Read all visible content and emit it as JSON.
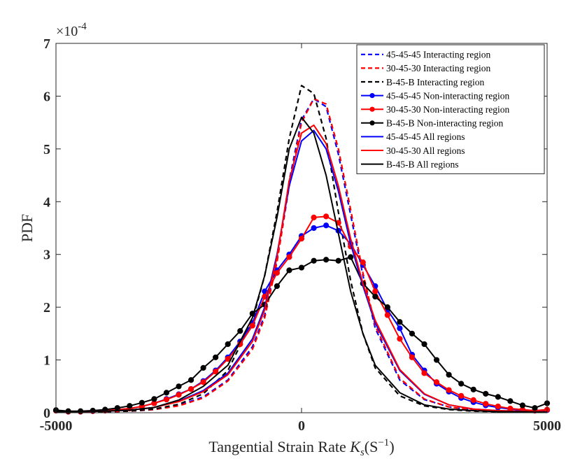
{
  "chart_data": {
    "type": "line",
    "xlabel": "Tangential Strain Rate",
    "xlabel_math": "K",
    "xlabel_math_sub": "s",
    "xlabel_math_paren": "(S",
    "xlabel_math_sup": "−1",
    "xlabel_math_close": ")",
    "ylabel": "PDF",
    "y_exponent_base": "×10",
    "y_exponent_power": "-4",
    "xlim": [
      -5000,
      5000
    ],
    "ylim": [
      0,
      7
    ],
    "xticks": [
      -5000,
      0,
      5000
    ],
    "xtick_labels": [
      "-5000",
      "0",
      "5000"
    ],
    "yticks": [
      0,
      1,
      2,
      3,
      4,
      5,
      6,
      7
    ],
    "ytick_labels": [
      "0",
      "1",
      "2",
      "3",
      "4",
      "5",
      "6",
      "7"
    ],
    "grid": false,
    "legend_position": "top-right",
    "colors": {
      "blue": "#0000ff",
      "red": "#ff0000",
      "black": "#000000"
    },
    "series": [
      {
        "name": "45-45-45 Interacting region",
        "color": "#0000ff",
        "style": "dashed",
        "marker": "none",
        "x": [
          -5000,
          -4500,
          -4000,
          -3500,
          -3000,
          -2500,
          -2000,
          -1500,
          -1000,
          -750,
          -500,
          -250,
          0,
          250,
          500,
          750,
          1000,
          1250,
          1500,
          2000,
          2500,
          3000,
          3500,
          4000,
          4500,
          5000
        ],
        "y": [
          0.01,
          0.01,
          0.02,
          0.03,
          0.06,
          0.14,
          0.3,
          0.62,
          1.25,
          1.85,
          2.9,
          4.4,
          5.55,
          5.95,
          5.8,
          4.9,
          3.75,
          2.6,
          1.6,
          0.62,
          0.25,
          0.11,
          0.05,
          0.03,
          0.02,
          0.01
        ]
      },
      {
        "name": "30-45-30 Interacting region",
        "color": "#ff0000",
        "style": "dashed",
        "marker": "none",
        "x": [
          -5000,
          -4500,
          -4000,
          -3500,
          -3000,
          -2500,
          -2000,
          -1500,
          -1000,
          -750,
          -500,
          -250,
          0,
          250,
          500,
          750,
          1000,
          1250,
          1500,
          2000,
          2500,
          3000,
          3500,
          4000,
          4500,
          5000
        ],
        "y": [
          0.01,
          0.01,
          0.02,
          0.03,
          0.06,
          0.13,
          0.28,
          0.6,
          1.2,
          1.8,
          2.85,
          4.3,
          5.5,
          5.95,
          5.85,
          5.0,
          3.85,
          2.65,
          1.65,
          0.65,
          0.26,
          0.11,
          0.05,
          0.03,
          0.02,
          0.01
        ]
      },
      {
        "name": "B-45-B Interacting region",
        "color": "#000000",
        "style": "dashed",
        "marker": "none",
        "x": [
          -5000,
          -4500,
          -4000,
          -3500,
          -3000,
          -2500,
          -2000,
          -1500,
          -1000,
          -750,
          -500,
          -250,
          0,
          250,
          500,
          750,
          1000,
          1250,
          1500,
          2000,
          2500,
          3000,
          3500,
          4000,
          4500,
          5000
        ],
        "y": [
          0.01,
          0.01,
          0.02,
          0.03,
          0.07,
          0.16,
          0.36,
          0.8,
          1.75,
          2.6,
          3.8,
          5.2,
          6.2,
          6.05,
          5.2,
          3.8,
          2.5,
          1.5,
          0.85,
          0.32,
          0.13,
          0.06,
          0.03,
          0.02,
          0.01,
          0.01
        ]
      },
      {
        "name": "45-45-45 Non-interacting region",
        "color": "#0000ff",
        "style": "solid",
        "marker": "circle",
        "x": [
          -5000,
          -4750,
          -4500,
          -4250,
          -4000,
          -3750,
          -3500,
          -3250,
          -3000,
          -2750,
          -2500,
          -2250,
          -2000,
          -1750,
          -1500,
          -1250,
          -1000,
          -750,
          -500,
          -250,
          0,
          250,
          500,
          750,
          1000,
          1250,
          1500,
          1750,
          2000,
          2250,
          2500,
          2750,
          3000,
          3250,
          3500,
          3750,
          4000,
          4250,
          4500,
          4750,
          5000
        ],
        "y": [
          0.04,
          0.02,
          0.02,
          0.03,
          0.04,
          0.06,
          0.08,
          0.12,
          0.18,
          0.26,
          0.35,
          0.45,
          0.6,
          0.8,
          1.05,
          1.35,
          1.7,
          2.3,
          2.7,
          3.0,
          3.35,
          3.5,
          3.55,
          3.45,
          3.2,
          2.8,
          2.4,
          1.95,
          1.6,
          1.1,
          0.8,
          0.55,
          0.4,
          0.28,
          0.2,
          0.14,
          0.1,
          0.07,
          0.05,
          0.04,
          0.05
        ]
      },
      {
        "name": "30-45-30 Non-interacting region",
        "color": "#ff0000",
        "style": "solid",
        "marker": "circle",
        "x": [
          -5000,
          -4750,
          -4500,
          -4250,
          -4000,
          -3750,
          -3500,
          -3250,
          -3000,
          -2750,
          -2500,
          -2250,
          -2000,
          -1750,
          -1500,
          -1250,
          -1000,
          -750,
          -500,
          -250,
          0,
          250,
          500,
          750,
          1000,
          1250,
          1500,
          1750,
          2000,
          2250,
          2500,
          2750,
          3000,
          3250,
          3500,
          3750,
          4000,
          4250,
          4500,
          4750,
          5000
        ],
        "y": [
          0.04,
          0.02,
          0.02,
          0.03,
          0.04,
          0.06,
          0.08,
          0.12,
          0.18,
          0.25,
          0.34,
          0.45,
          0.58,
          0.78,
          1.02,
          1.3,
          1.65,
          2.2,
          2.65,
          2.95,
          3.3,
          3.7,
          3.72,
          3.6,
          3.15,
          2.85,
          2.3,
          1.85,
          1.4,
          1.05,
          0.75,
          0.58,
          0.43,
          0.32,
          0.24,
          0.17,
          0.12,
          0.08,
          0.06,
          0.04,
          0.06
        ]
      },
      {
        "name": "B-45-B Non-interacting region",
        "color": "#000000",
        "style": "solid",
        "marker": "circle",
        "x": [
          -5000,
          -4750,
          -4500,
          -4250,
          -4000,
          -3750,
          -3500,
          -3250,
          -3000,
          -2750,
          -2500,
          -2250,
          -2000,
          -1750,
          -1500,
          -1250,
          -1000,
          -750,
          -500,
          -250,
          0,
          250,
          500,
          750,
          1000,
          1250,
          1500,
          1750,
          2000,
          2250,
          2500,
          2750,
          3000,
          3250,
          3500,
          3750,
          4000,
          4250,
          4500,
          4750,
          5000
        ],
        "y": [
          0.05,
          0.03,
          0.03,
          0.04,
          0.06,
          0.09,
          0.13,
          0.19,
          0.26,
          0.38,
          0.5,
          0.62,
          0.85,
          1.05,
          1.3,
          1.55,
          1.88,
          2.05,
          2.4,
          2.7,
          2.75,
          2.88,
          2.9,
          2.88,
          2.95,
          2.45,
          2.2,
          2.0,
          1.72,
          1.5,
          1.3,
          1.0,
          0.72,
          0.55,
          0.44,
          0.36,
          0.3,
          0.22,
          0.14,
          0.09,
          0.18
        ]
      },
      {
        "name": "45-45-45 All regions",
        "color": "#0000ff",
        "style": "solid",
        "marker": "none",
        "x": [
          -5000,
          -4500,
          -4000,
          -3500,
          -3000,
          -2500,
          -2000,
          -1500,
          -1000,
          -750,
          -500,
          -250,
          0,
          250,
          500,
          750,
          1000,
          1250,
          1500,
          2000,
          2500,
          3000,
          3500,
          4000,
          4500,
          5000
        ],
        "y": [
          0.02,
          0.02,
          0.03,
          0.05,
          0.1,
          0.22,
          0.42,
          0.75,
          1.4,
          2.0,
          3.0,
          4.3,
          5.15,
          5.35,
          5.0,
          4.2,
          3.2,
          2.4,
          1.7,
          0.8,
          0.35,
          0.15,
          0.07,
          0.04,
          0.03,
          0.02
        ]
      },
      {
        "name": "30-45-30 All regions",
        "color": "#ff0000",
        "style": "solid",
        "marker": "none",
        "x": [
          -5000,
          -4500,
          -4000,
          -3500,
          -3000,
          -2500,
          -2000,
          -1500,
          -1000,
          -750,
          -500,
          -250,
          0,
          250,
          500,
          750,
          1000,
          1250,
          1500,
          2000,
          2500,
          3000,
          3500,
          4000,
          4500,
          5000
        ],
        "y": [
          0.02,
          0.02,
          0.03,
          0.05,
          0.1,
          0.21,
          0.4,
          0.72,
          1.35,
          1.95,
          2.95,
          4.4,
          5.3,
          5.45,
          5.1,
          4.3,
          3.3,
          2.45,
          1.75,
          0.82,
          0.36,
          0.15,
          0.07,
          0.04,
          0.03,
          0.02
        ]
      },
      {
        "name": "B-45-B All regions",
        "color": "#000000",
        "style": "solid",
        "marker": "none",
        "x": [
          -5000,
          -4500,
          -4000,
          -3500,
          -3000,
          -2500,
          -2000,
          -1500,
          -1000,
          -750,
          -500,
          -250,
          0,
          250,
          500,
          750,
          1000,
          1250,
          1500,
          2000,
          2500,
          3000,
          3500,
          4000,
          4500,
          5000
        ],
        "y": [
          0.02,
          0.02,
          0.03,
          0.05,
          0.1,
          0.24,
          0.5,
          0.9,
          1.8,
          2.6,
          3.7,
          5.0,
          5.6,
          5.3,
          4.5,
          3.4,
          2.3,
          1.5,
          0.9,
          0.38,
          0.15,
          0.07,
          0.04,
          0.02,
          0.02,
          0.01
        ]
      }
    ]
  }
}
